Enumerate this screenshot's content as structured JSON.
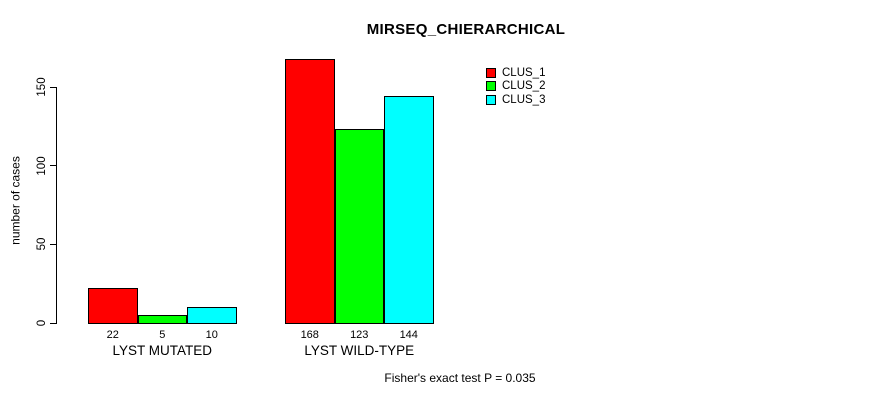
{
  "chart_data": {
    "type": "bar",
    "title": "MIRSEQ_CHIERARCHICAL",
    "ylabel": "number of cases",
    "xlabel": "",
    "categories": [
      "LYST MUTATED",
      "LYST WILD-TYPE"
    ],
    "series": [
      {
        "name": "CLUS_1",
        "color": "#ff0000",
        "values": [
          22,
          168
        ]
      },
      {
        "name": "CLUS_2",
        "color": "#00ff00",
        "values": [
          5,
          123
        ]
      },
      {
        "name": "CLUS_3",
        "color": "#00ffff",
        "values": [
          10,
          144
        ]
      }
    ],
    "yticks": [
      0,
      50,
      100,
      150
    ],
    "ylim": [
      0,
      175
    ],
    "grid": false,
    "legend_position": "top-right",
    "note": "Fisher's exact test P = 0.035",
    "colors": {
      "background": "#ffffff",
      "text": "#000000",
      "bar_border": "#000000"
    }
  }
}
